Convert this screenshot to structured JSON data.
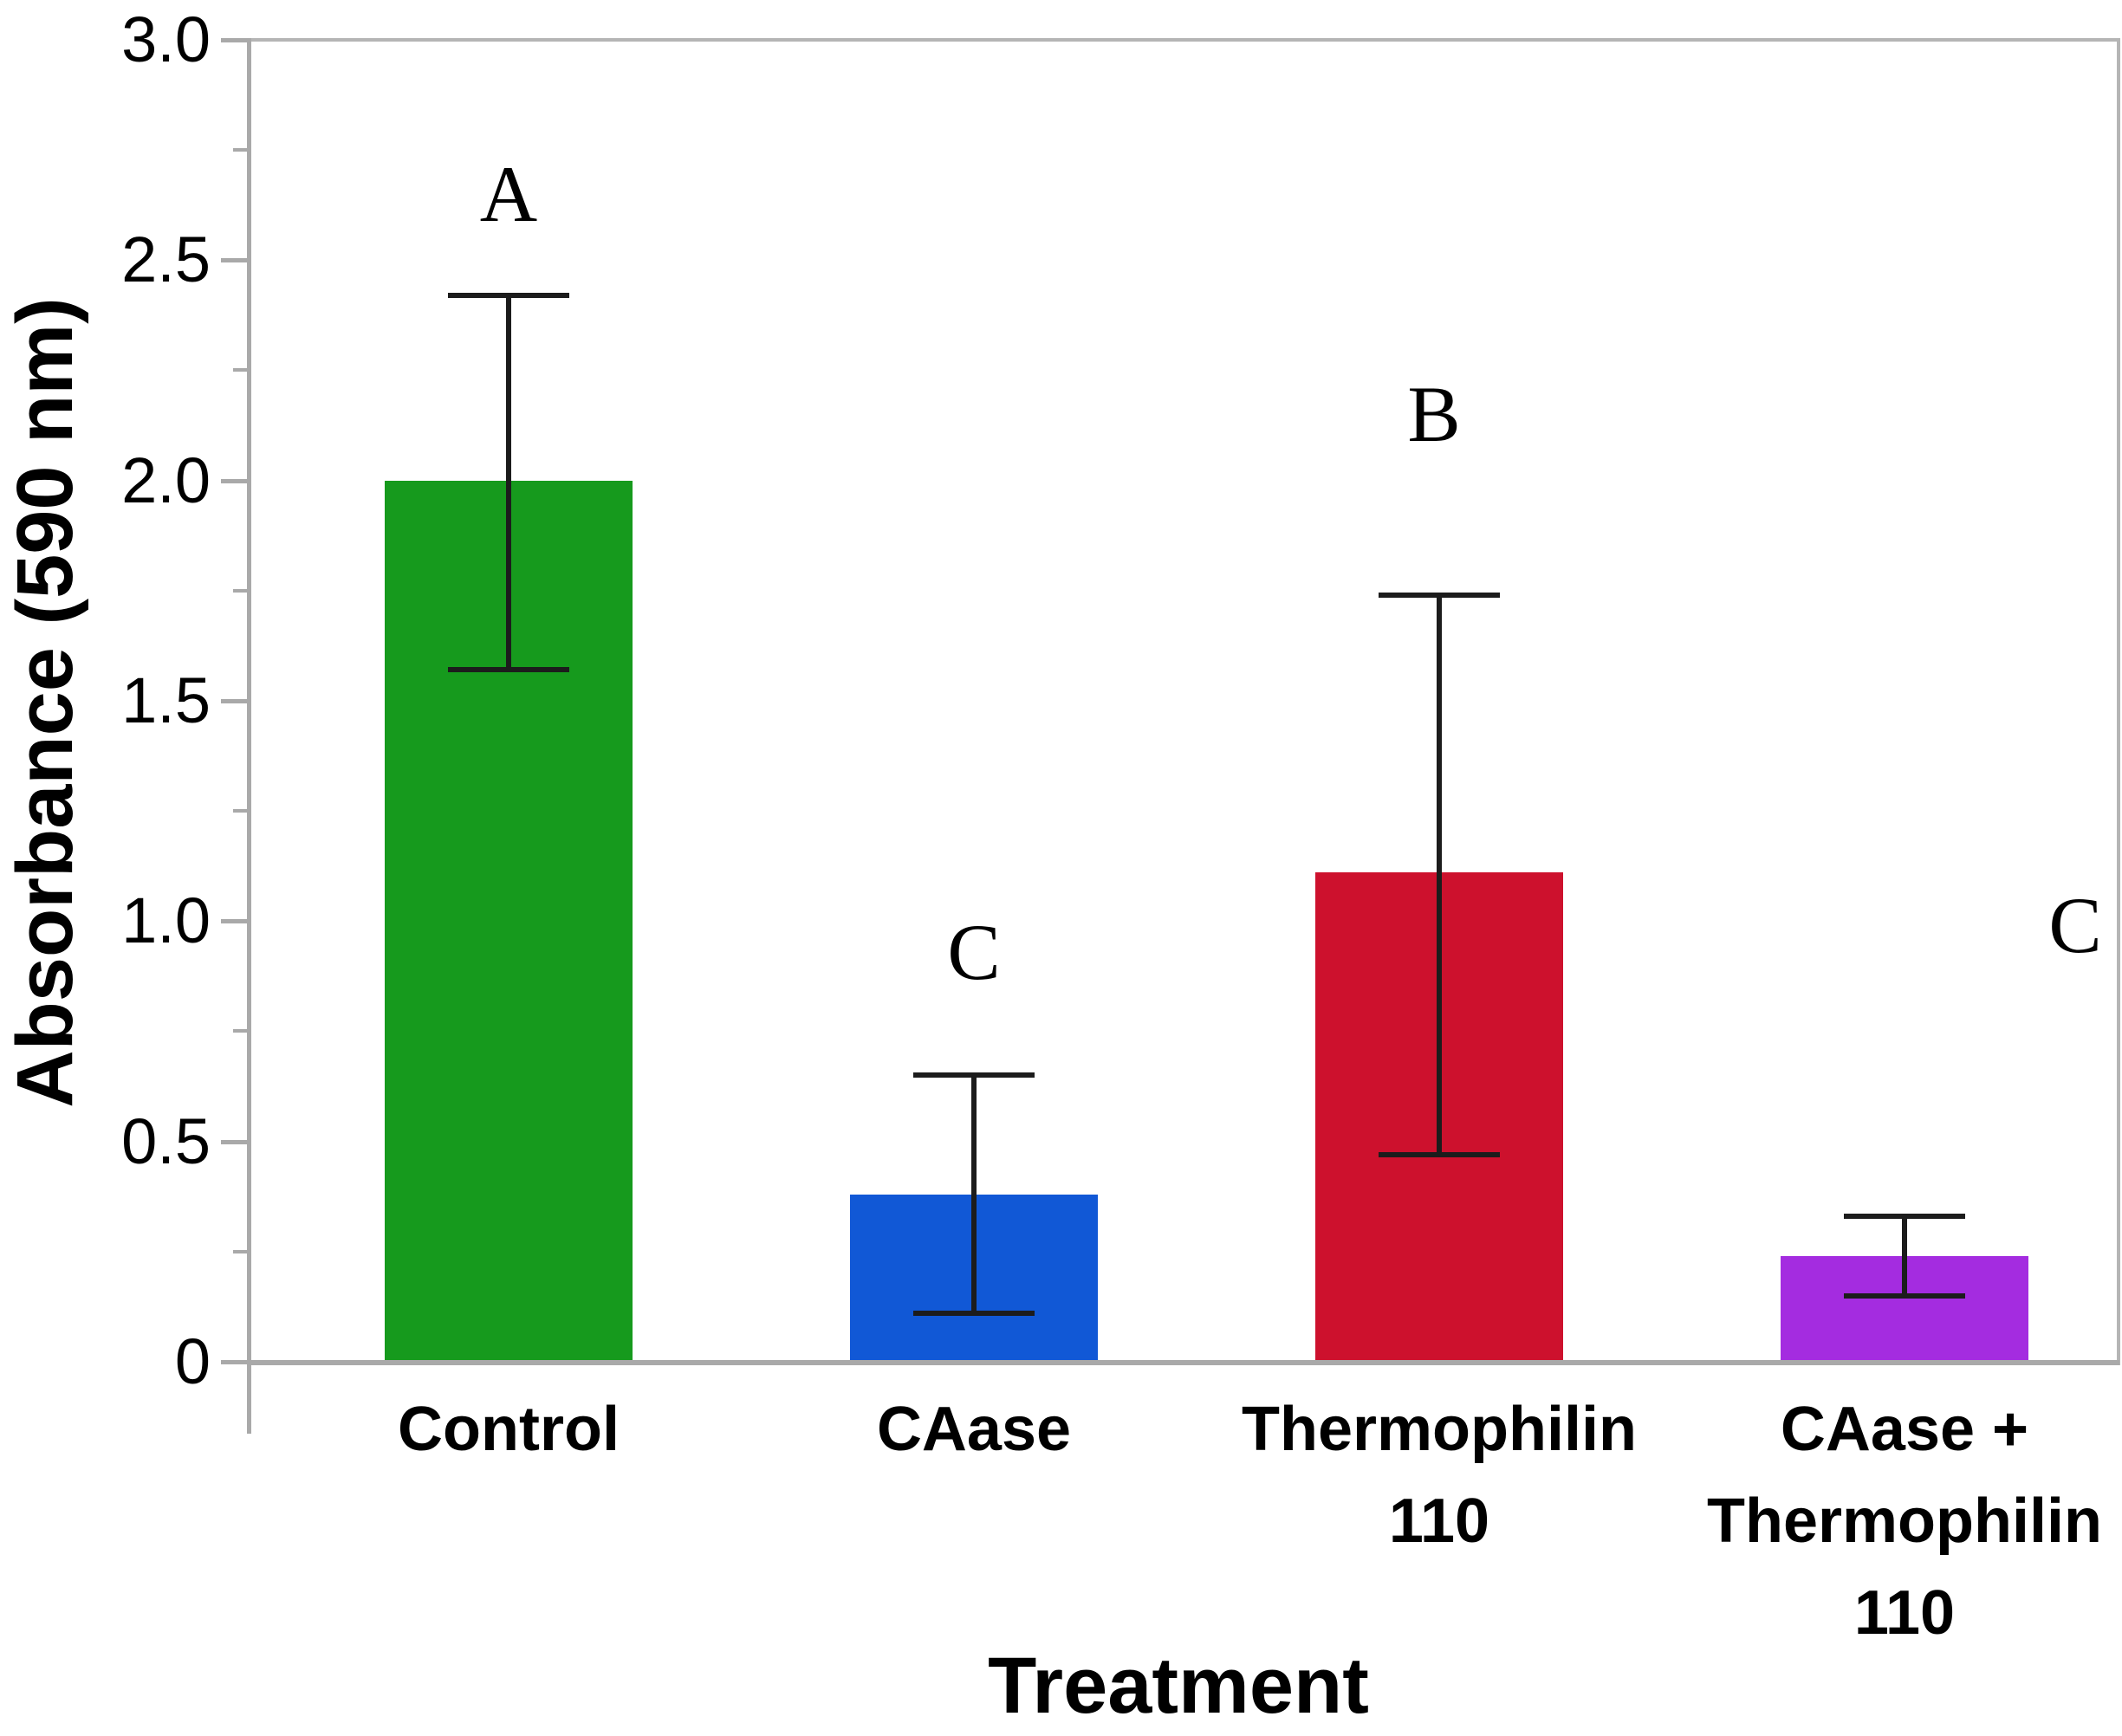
{
  "chart_data": {
    "type": "bar",
    "title": "",
    "ylabel": "Absorbance (590 nm)",
    "xlabel": "Treatment",
    "ylim": [
      0,
      3.0
    ],
    "y_major_ticks": [
      {
        "value": 0,
        "label": "0"
      },
      {
        "value": 0.5,
        "label": "0.5"
      },
      {
        "value": 1.0,
        "label": "1.0"
      },
      {
        "value": 1.5,
        "label": "1.5"
      },
      {
        "value": 2.0,
        "label": "2.0"
      },
      {
        "value": 2.5,
        "label": "2.5"
      },
      {
        "value": 3.0,
        "label": "3.0"
      }
    ],
    "y_minor_ticks": [
      0.25,
      0.75,
      1.25,
      1.75,
      2.25,
      2.75
    ],
    "categories": [
      "Control",
      "CAase",
      "Thermophilin 110",
      "CAase + Thermophilin 110"
    ],
    "category_display_lines": [
      [
        "Control"
      ],
      [
        "CAase"
      ],
      [
        "Thermophilin",
        "110"
      ],
      [
        "CAase +",
        "Thermophilin",
        "110"
      ]
    ],
    "values": [
      2.0,
      0.38,
      1.11,
      0.24
    ],
    "error_bar_upper": [
      2.42,
      0.65,
      1.74,
      0.33
    ],
    "error_bar_lower": [
      1.57,
      0.11,
      0.47,
      0.15
    ],
    "bar_colors": [
      "#169a1d",
      "#1158d6",
      "#cd112d",
      "#a42ce0"
    ],
    "significance_letters": [
      "A",
      "C",
      "B",
      "C"
    ],
    "grid": false,
    "legend": null,
    "axis_color": "#a9a9a9",
    "error_bar_color": "#1c1c1c",
    "text_color": "#000000"
  }
}
